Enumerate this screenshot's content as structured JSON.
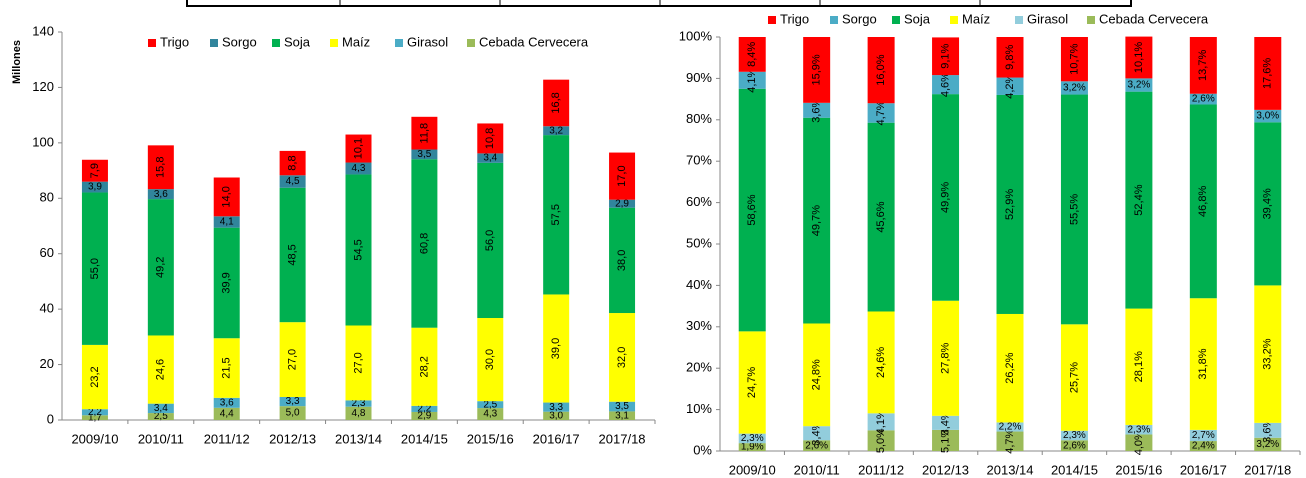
{
  "chart_data": [
    {
      "type": "stacked_bar",
      "y_label": "Millones",
      "legend": "top",
      "categories": [
        "2009/10",
        "2010/11",
        "2011/12",
        "2012/13",
        "2013/14",
        "2014/15",
        "2015/16",
        "2016/17",
        "2017/18"
      ],
      "ylim": [
        0,
        140
      ],
      "yticks": [
        0,
        20,
        40,
        60,
        80,
        100,
        120,
        140
      ],
      "grid": false,
      "series": [
        {
          "name": "Trigo",
          "color": "#ff0000",
          "values": [
            7.9,
            15.8,
            14.0,
            8.8,
            10.1,
            11.8,
            10.8,
            16.8,
            17.0
          ],
          "value_labels": [
            "7,9",
            "15,8",
            "14,0",
            "8,8",
            "10,1",
            "11,8",
            "10,8",
            "16,8",
            "17,0"
          ]
        },
        {
          "name": "Sorgo",
          "color": "#31859c",
          "values": [
            3.9,
            3.6,
            4.1,
            4.5,
            4.3,
            3.5,
            3.4,
            3.2,
            2.9
          ],
          "value_labels": [
            "3,9",
            "3,6",
            "4,1",
            "4,5",
            "4,3",
            "3,5",
            "3,4",
            "3,2",
            "2,9"
          ]
        },
        {
          "name": "Soja",
          "color": "#00b050",
          "values": [
            55.0,
            49.2,
            39.9,
            48.5,
            54.5,
            60.8,
            56.0,
            57.5,
            38.0
          ],
          "value_labels": [
            "55,0",
            "49,2",
            "39,9",
            "48,5",
            "54,5",
            "60,8",
            "56,0",
            "57,5",
            "38,0"
          ]
        },
        {
          "name": "Maíz",
          "color": "#ffff00",
          "values": [
            23.2,
            24.6,
            21.5,
            27.0,
            27.0,
            28.2,
            30.0,
            39.0,
            32.0
          ],
          "value_labels": [
            "23,2",
            "24,6",
            "21,5",
            "27,0",
            "27,0",
            "28,2",
            "30,0",
            "39,0",
            "32,0"
          ]
        },
        {
          "name": "Girasol",
          "color": "#4bacc6",
          "values": [
            2.2,
            3.4,
            3.6,
            3.3,
            2.3,
            2.2,
            2.5,
            3.3,
            3.5
          ],
          "value_labels": [
            "2,2",
            "3,4",
            "3,6",
            "3,3",
            "2,3",
            "2,2",
            "2,5",
            "3,3",
            "3,5"
          ]
        },
        {
          "name": "Cebada Cervecera",
          "color": "#9bbb59",
          "values": [
            1.7,
            2.5,
            4.4,
            5.0,
            4.8,
            2.9,
            4.3,
            3.0,
            3.1
          ],
          "value_labels": [
            "1,7",
            "2,5",
            "4,4",
            "5,0",
            "4,8",
            "2,9",
            "4,3",
            "3,0",
            "3,1"
          ]
        }
      ]
    },
    {
      "type": "stacked_bar",
      "legend": "top",
      "categories": [
        "2009/10",
        "2010/11",
        "2011/12",
        "2012/13",
        "2013/14",
        "2014/15",
        "2015/16",
        "2016/17",
        "2017/18"
      ],
      "ylim": [
        0,
        100
      ],
      "yticks": [
        {
          "value": 0,
          "label": "0%"
        },
        {
          "value": 10,
          "label": "10%"
        },
        {
          "value": 20,
          "label": "20%"
        },
        {
          "value": 30,
          "label": "30%"
        },
        {
          "value": 40,
          "label": "40%"
        },
        {
          "value": 50,
          "label": "50%"
        },
        {
          "value": 60,
          "label": "60%"
        },
        {
          "value": 70,
          "label": "70%"
        },
        {
          "value": 80,
          "label": "80%"
        },
        {
          "value": 90,
          "label": "90%"
        },
        {
          "value": 100,
          "label": "100%"
        }
      ],
      "grid": false,
      "series": [
        {
          "name": "Trigo",
          "color": "#ff0000",
          "values": [
            8.4,
            15.9,
            16.0,
            9.1,
            9.8,
            10.7,
            10.1,
            13.7,
            17.6
          ],
          "value_labels": [
            "8,4%",
            "15,9%",
            "16,0%",
            "9,1%",
            "9,8%",
            "10,7%",
            "10,1%",
            "13,7%",
            "17,6%"
          ]
        },
        {
          "name": "Sorgo",
          "color": "#4bacc6",
          "values": [
            4.1,
            3.6,
            4.7,
            4.6,
            4.2,
            3.2,
            3.2,
            2.6,
            3.0
          ],
          "value_labels": [
            "4,1%",
            "3,6%",
            "4,7%",
            "4,6%",
            "4,2%",
            "3,2%",
            "3,2%",
            "2,6%",
            "3,0%"
          ]
        },
        {
          "name": "Soja",
          "color": "#00b050",
          "values": [
            58.6,
            49.7,
            45.6,
            49.9,
            52.9,
            55.5,
            52.4,
            46.8,
            39.4
          ],
          "value_labels": [
            "58,6%",
            "49,7%",
            "45,6%",
            "49,9%",
            "52,9%",
            "55,5%",
            "52,4%",
            "46,8%",
            "39,4%"
          ]
        },
        {
          "name": "Maíz",
          "color": "#ffff00",
          "values": [
            24.7,
            24.8,
            24.6,
            27.8,
            26.2,
            25.7,
            28.1,
            31.8,
            33.2
          ],
          "value_labels": [
            "24,7%",
            "24,8%",
            "24,6%",
            "27,8%",
            "26,2%",
            "25,7%",
            "28,1%",
            "31,8%",
            "33,2%"
          ]
        },
        {
          "name": "Girasol",
          "color": "#92cddc",
          "values": [
            2.3,
            3.4,
            4.1,
            3.4,
            2.2,
            2.3,
            2.3,
            2.7,
            3.6
          ],
          "value_labels": [
            "2,3%",
            "3,4%",
            "4,1%",
            "3,4%",
            "2,2%",
            "2,3%",
            "2,3%",
            "2,7%",
            "3,6%"
          ]
        },
        {
          "name": "Cebada Cervecera",
          "color": "#9bbb59",
          "values": [
            1.9,
            2.6,
            5.0,
            5.1,
            4.7,
            2.6,
            4.0,
            2.4,
            3.2
          ],
          "value_labels": [
            "1,9%",
            "2,6%",
            "5,0%",
            "5,1%",
            "4,7%",
            "2,6%",
            "4,0%",
            "2,4%",
            "3,2%"
          ]
        }
      ]
    }
  ]
}
